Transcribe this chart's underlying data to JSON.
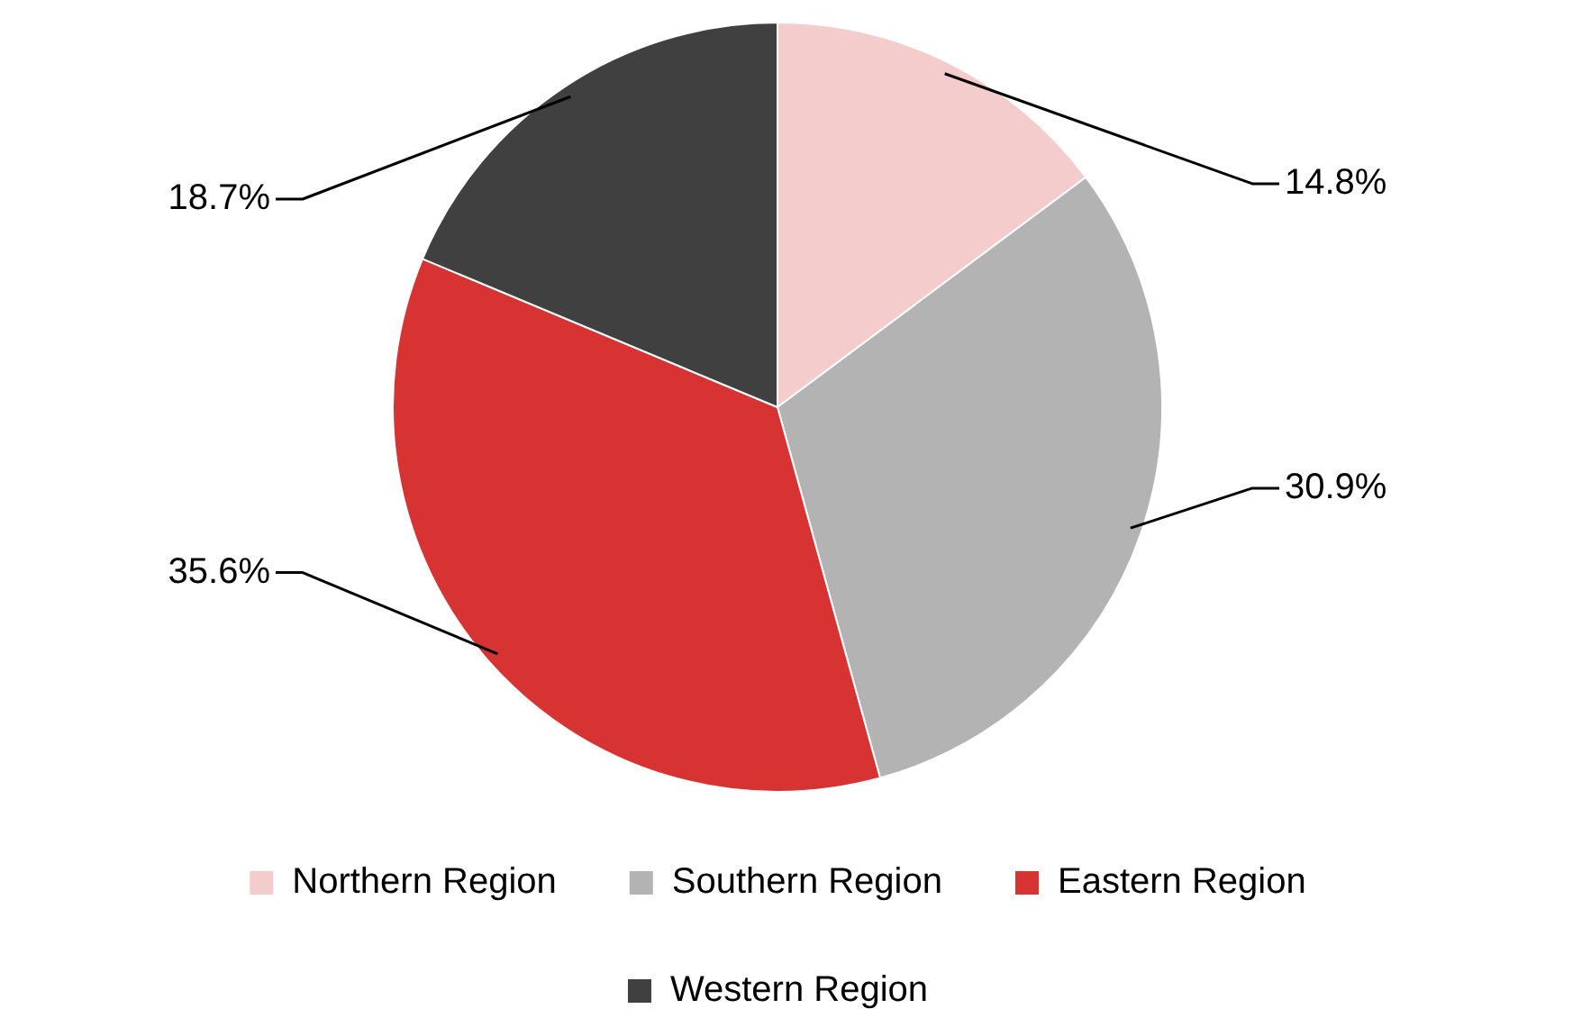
{
  "chart_data": {
    "type": "pie",
    "categories": [
      "Northern Region",
      "Southern Region",
      "Eastern Region",
      "Western Region"
    ],
    "values": [
      14.8,
      30.9,
      35.6,
      18.7
    ],
    "colors": [
      "#f4cccc",
      "#b3b3b3",
      "#d73332",
      "#404040"
    ],
    "value_labels": [
      "14.8%",
      "30.9%",
      "35.6%",
      "18.7%"
    ],
    "legend": "bottom"
  }
}
